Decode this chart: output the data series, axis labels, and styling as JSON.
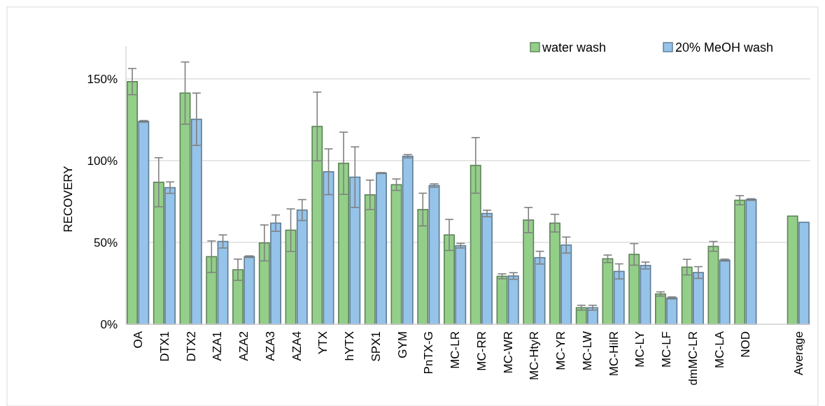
{
  "chart_data": {
    "type": "bar",
    "ylabel": "RECOVERY",
    "categories": [
      "OA",
      "DTX1",
      "DTX2",
      "AZA1",
      "AZA2",
      "AZA3",
      "AZA4",
      "YTX",
      "hYTX",
      "SPX1",
      "GYM",
      "PnTX-G",
      "MC-LR",
      "MC-RR",
      "MC-WR",
      "MC-HtyR",
      "MC-YR",
      "MC-LW",
      "MC-HilR",
      "MC-LY",
      "MC-LF",
      "dmMC-LR",
      "MC-LA",
      "NOD",
      null,
      "Average"
    ],
    "series": [
      {
        "name": "water wash",
        "color": "#94cf8a",
        "values": [
          148.3,
          86.8,
          141.3,
          41.3,
          33.3,
          49.7,
          57.5,
          120.9,
          98.4,
          79.1,
          85.3,
          70.1,
          54.6,
          97.1,
          29.3,
          63.7,
          61.8,
          10.1,
          40,
          42.7,
          18.5,
          34.9,
          47.6,
          75.8,
          null,
          66.1
        ],
        "errors": [
          8,
          15,
          19,
          9.6,
          6.5,
          11,
          13,
          21,
          19,
          9,
          3.5,
          10,
          9.5,
          17,
          1.5,
          7.7,
          5.4,
          1.5,
          2.3,
          6.6,
          1.3,
          4.8,
          3,
          2.8,
          null,
          null
        ]
      },
      {
        "name": "20% MeOH wash",
        "color": "#95c3ea",
        "values": [
          124,
          83.5,
          125.3,
          50.6,
          41.3,
          61.8,
          69.8,
          93.2,
          89.9,
          92.4,
          102.7,
          84.8,
          48,
          67.7,
          29.5,
          40.7,
          48.4,
          10.1,
          32.3,
          35.9,
          16.1,
          31.6,
          39.2,
          76.2,
          null,
          62.3
        ],
        "errors": [
          0.5,
          3.5,
          16,
          4,
          0.5,
          5,
          6.4,
          14,
          18.5,
          0.3,
          1,
          1,
          1.4,
          2,
          2,
          3.9,
          4.9,
          1.5,
          4.6,
          2.1,
          0.6,
          3.6,
          0.6,
          0.5,
          null,
          null
        ]
      }
    ],
    "yticks": [
      {
        "value": 0,
        "label": "0%"
      },
      {
        "value": 50,
        "label": "50%"
      },
      {
        "value": 100,
        "label": "100%"
      },
      {
        "value": 150,
        "label": "150%"
      }
    ],
    "ylim": [
      0,
      170
    ],
    "grid": "y",
    "legend": "top right"
  }
}
